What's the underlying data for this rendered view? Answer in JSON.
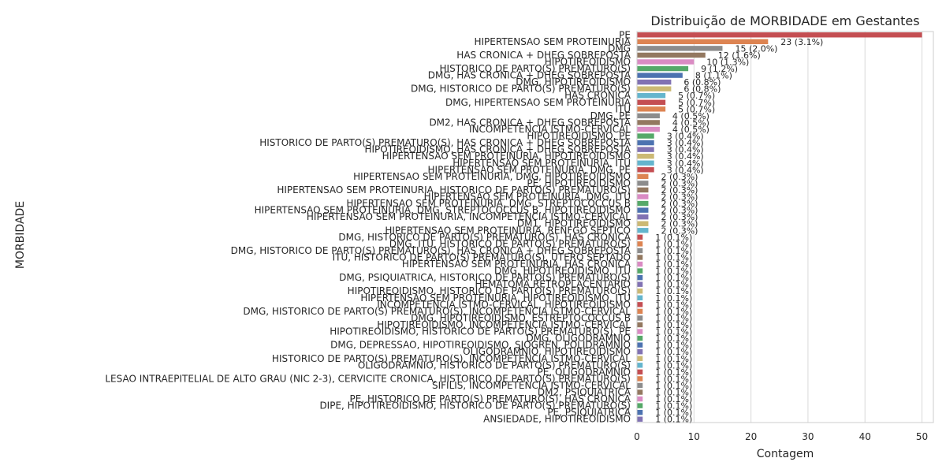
{
  "chart_data": {
    "type": "bar",
    "orientation": "horizontal",
    "title": "Distribuição de MORBIDADE em Gestantes",
    "xlabel": "Contagem",
    "ylabel": "MORBIDADE",
    "xlim": [
      0,
      52
    ],
    "xticks": [
      0,
      10,
      20,
      30,
      40,
      50
    ],
    "grid": "vertical",
    "categories": [
      "PE",
      "HIPERTENSAO SEM PROTEINURIA",
      "DMG",
      "HAS CRONICA + DHEG SOBREPOSTA",
      "HIPOTIREOIDISMO",
      "HISTORICO DE PARTO(S) PREMATURO(S)",
      "DMG, HAS CRONICA + DHEG SOBREPOSTA",
      "DMG, HIPOTIREOIDISMO",
      "DMG, HISTORICO DE PARTO(S) PREMATURO(S)",
      "HAS CRONICA",
      "DMG, HIPERTENSAO SEM PROTEINURIA",
      "ITU",
      "DMG, PE",
      "DM2, HAS CRONICA + DHEG SOBREPOSTA",
      "INCOMPETENCIA ISTMO-CERVICAL",
      "HIPOTIREOIDISMO, PE",
      "HISTORICO DE PARTO(S) PREMATURO(S), HAS CRONICA + DHEG SOBREPOSTA",
      "HIPOTIREOIDISMO, HAS CRONICA + DHEG SOBREPOSTA",
      "HIPERTENSAO SEM PROTEINURIA, HIPOTIREOIDISMO",
      "HIPERTENSAO SEM PROTEINURIA, ITU",
      "HIPERTENSAO SEM PROTEINURIA, DMG, PE",
      "HIPERTENSAO SEM PROTEINURIA, DMG, HIPOTIREOIDISMO",
      "PE, HIPOTIREOIDISMO",
      "HIPERTENSAO SEM PROTEINURIA, HISTORICO DE PARTO(S) PREMATURO(S)",
      "HIPERTENSAO SEM PROTEINURIA, DMG, ITU",
      "HIPERTENSAO SEM PROTEINURIA, DMG, STREPTOCOCCUS B",
      "HIPERTENSAO SEM PROTEINURIA, DMG, STREPTOCOCCUS B, HIPOTIREOIDISMO",
      "HIPERTENSAO SEM PROTEINURIA, INCOMPETENCIA ISTMO-CERVICAL",
      "DM1, HIPOTIREOIDISMO",
      "HIPERTENSAO SEM PROTEINURIA, RENFGO SEPTICO",
      "DMG, HISTORICO DE PARTO(S) PREMATURO(S), HAS CRONICA",
      "DMG, ITU, HISTORICO DE PARTO(S) PREMATURO(S)",
      "DMG, HISTORICO DE PARTO(S) PREMATURO(S), HAS CRONICA + DHEG SOBREPOSTA",
      "ITU, HISTORICO DE PARTO(S) PREMATURO(S), UTERO SEPTADO",
      "HIPERTENSAO SEM PROTEINURIA, HAS CRONICA",
      "DMG, HIPOTIREOIDISMO, ITU",
      "DMG, PSIQUIATRICA, HISTORICO DE PARTO(S) PREMATURO(S)",
      "HEMATOMA RETROPLACENTARIO",
      "HIPOTIREOIDISMO, HISTORICO DE PARTO(S) PREMATURO(S)",
      "HIPERTENSAO SEM PROTEINURIA, HIPOTIREOIDISMO, ITU",
      "INCOMPETENCIA ISTMO-CERVICAL, HIPOTIREOIDISMO",
      "DMG, HISTORICO DE PARTO(S) PREMATURO(S), INCOMPETENCIA ISTMO-CERVICAL",
      "DMG, HIPOTIREOIDISMO, ESTREPTOCOCCUS B",
      "HIPOTIREOIDISMO, INCOMPETENCIA ISTMO-CERVICAL",
      "HIPOTIREOIDISMO, HISTORICO DE PARTO(S) PREMATURO(S), PE",
      "DMG, OLIGODRAMNIO",
      "DMG, DEPRESSAO, HIPOTIREOIDISMO, SJOGREN, POLIDRAMNIO",
      "OLIGODRAMNIO, HIPOTIREOIDISMO",
      "HISTORICO DE PARTO(S) PREMATURO(S), INCOMPETENCIA ISTMO-CERVICAL",
      "OLIGODRAMNIO, HISTORICO DE PARTO(S) PREMATURO(S)",
      "PE, OLIGODRAMNIO",
      "LESAO INTRAEPITELIAL DE ALTO GRAU (NIC 2-3), CERVICITE CRONICA, HISTORICO DE PARTO(S) PREMATURO(S)",
      "SIFILIS, INCOMPETENCIA ISTMO-CERVICAL",
      "DM2, PSIQUIATRICA",
      "PE, HISTORICO DE PARTO(S) PREMATURO(S), HAS CRONICA",
      "DIPE, HIPOTIREOIDISMO, HISTORICO DE PARTO(S) PREMATURO(S)",
      "PE, PSIQUIATRICA",
      "ANSIEDADE, HIPOTIREOIDISMO"
    ],
    "values": [
      50,
      23,
      15,
      12,
      10,
      9,
      8,
      6,
      6,
      5,
      5,
      5,
      4,
      4,
      4,
      3,
      3,
      3,
      3,
      3,
      3,
      2,
      2,
      2,
      2,
      2,
      2,
      2,
      2,
      2,
      1,
      1,
      1,
      1,
      1,
      1,
      1,
      1,
      1,
      1,
      1,
      1,
      1,
      1,
      1,
      1,
      1,
      1,
      1,
      1,
      1,
      1,
      1,
      1,
      1,
      1,
      1,
      1
    ],
    "labels": [
      "",
      "23 (3.1%)",
      "15 (2.0%)",
      "12 (1.6%)",
      "10 (1.3%)",
      "9 (1.2%)",
      "8 (1.1%)",
      "6 (0.8%)",
      "6 (0.8%)",
      "5 (0.7%)",
      "5 (0.7%)",
      "5 (0.7%)",
      "4 (0.5%)",
      "4 (0.5%)",
      "4 (0.5%)",
      "3 (0.4%)",
      "3 (0.4%)",
      "3 (0.4%)",
      "3 (0.4%)",
      "3 (0.4%)",
      "3 (0.4%)",
      "2 (0.3%)",
      "2 (0.3%)",
      "2 (0.3%)",
      "2 (0.3%)",
      "2 (0.3%)",
      "2 (0.3%)",
      "2 (0.3%)",
      "2 (0.3%)",
      "2 (0.3%)",
      "1 (0.1%)",
      "1 (0.1%)",
      "1 (0.1%)",
      "1 (0.1%)",
      "1 (0.1%)",
      "1 (0.1%)",
      "1 (0.1%)",
      "1 (0.1%)",
      "1 (0.1%)",
      "1 (0.1%)",
      "1 (0.1%)",
      "1 (0.1%)",
      "1 (0.1%)",
      "1 (0.1%)",
      "1 (0.1%)",
      "1 (0.1%)",
      "1 (0.1%)",
      "1 (0.1%)",
      "1 (0.1%)",
      "1 (0.1%)",
      "1 (0.1%)",
      "1 (0.1%)",
      "1 (0.1%)",
      "1 (0.1%)",
      "1 (0.1%)",
      "1 (0.1%)",
      "1 (0.1%)",
      "1 (0.1%)"
    ],
    "colors": {
      "palette": [
        "#c44e52",
        "#dd8452",
        "#8c8c8c",
        "#937860",
        "#da8bc3",
        "#55a868",
        "#4c72b0",
        "#8172b3",
        "#ccb974",
        "#64b5cd"
      ]
    }
  }
}
